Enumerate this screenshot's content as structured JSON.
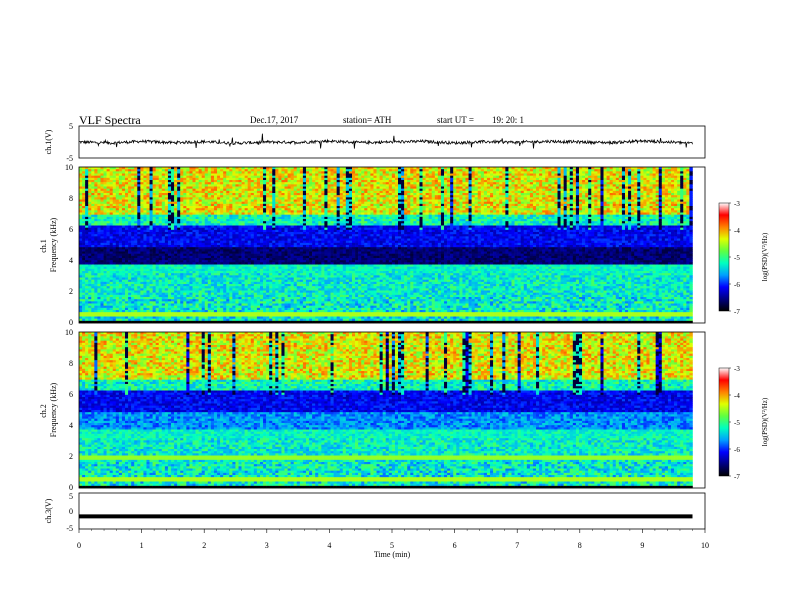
{
  "header": {
    "title": "VLF  Spectra",
    "date": "Dec.17, 2017",
    "station": "station= ATH",
    "start_label": "start  UT  =",
    "start_value": "19: 20: 1"
  },
  "colors": {
    "waveform": "#000000",
    "background": "#ffffff",
    "colormap": [
      "#000000",
      "#00007f",
      "#0000ff",
      "#00a0ff",
      "#00ffc0",
      "#60ff40",
      "#e0ff00",
      "#ff8000",
      "#ff0000",
      "#ffffff"
    ]
  },
  "chart_data": [
    {
      "type": "line",
      "panel": "ch1-waveform",
      "ylabel": "ch.1(V)",
      "ylim": [
        -5,
        5
      ],
      "yticks": [
        "5",
        "-5"
      ],
      "xlim": [
        0,
        10
      ],
      "x": [
        0,
        0.5,
        1,
        1.5,
        2,
        2.5,
        3,
        3.5,
        4,
        4.5,
        5,
        5.5,
        6,
        6.5,
        7,
        7.5,
        8,
        8.5,
        9,
        9.5,
        9.8
      ],
      "y": [
        0.0,
        -0.3,
        0.2,
        -0.2,
        0.1,
        -0.4,
        0.0,
        -0.1,
        0.3,
        -0.2,
        0.0,
        0.2,
        -0.3,
        0.1,
        -0.1,
        0.2,
        0.0,
        -0.2,
        0.3,
        -0.1,
        -0.4
      ]
    },
    {
      "type": "heatmap",
      "panel": "ch1-spectrogram",
      "ylabel": "ch.1\nFrequency  (kHz)",
      "ylim": [
        0,
        10
      ],
      "yticks": [
        "0",
        "2",
        "4",
        "6",
        "8",
        "10"
      ],
      "xlim": [
        0,
        10
      ],
      "x_extent": [
        0,
        9.8
      ],
      "colorbar": {
        "label": "log(PSD)(V²/Hz)",
        "range": [
          -7,
          -3
        ],
        "ticks": [
          "-3",
          "-4",
          "-5",
          "-6",
          "-7"
        ]
      }
    },
    {
      "type": "heatmap",
      "panel": "ch2-spectrogram",
      "ylabel": "ch.2\nFrequency  (kHz)",
      "ylim": [
        0,
        10
      ],
      "yticks": [
        "0",
        "2",
        "4",
        "6",
        "8",
        "10"
      ],
      "xlim": [
        0,
        10
      ],
      "x_extent": [
        0,
        9.8
      ],
      "colorbar": {
        "label": "log(PSD)(V²/Hz)",
        "range": [
          -7,
          -3
        ],
        "ticks": [
          "-3",
          "-4",
          "-5",
          "-6",
          "-7"
        ]
      }
    },
    {
      "type": "line",
      "panel": "ch3-waveform",
      "ylabel": "ch.3(V)",
      "ylim": [
        -5,
        5
      ],
      "yticks": [
        "5",
        "0",
        "-5"
      ],
      "xlim": [
        0,
        10
      ],
      "xlabel": "Time  (min)",
      "xticks": [
        "0",
        "1",
        "2",
        "3",
        "4",
        "5",
        "6",
        "7",
        "8",
        "9",
        "10"
      ],
      "x": [
        0,
        9.8
      ],
      "y": [
        -1.5,
        -1.5
      ]
    }
  ]
}
